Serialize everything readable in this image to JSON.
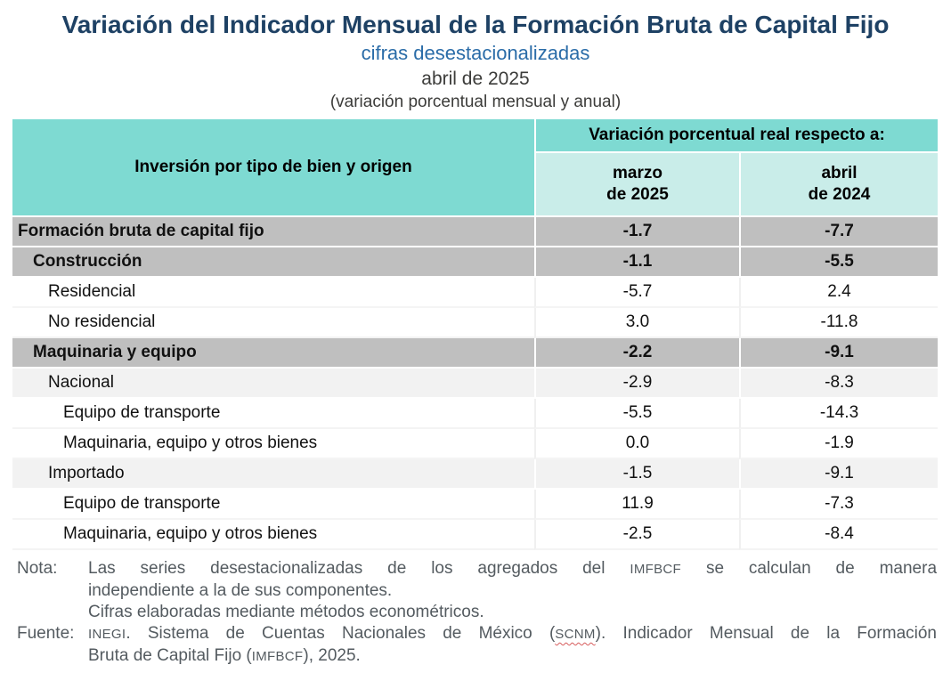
{
  "header": {
    "title": "Variación del Indicador Mensual de la Formación Bruta de Capital Fijo",
    "subtitle": "cifras desestacionalizadas",
    "period": "abril de 2025",
    "measure": "(variación porcentual mensual y anual)"
  },
  "table": {
    "stub_header": "Inversión por tipo de bien y origen",
    "values_header": "Variación porcentual real respecto a:",
    "col_marzo": "marzo\nde 2025",
    "col_abril": "abril\nde 2024",
    "rows": [
      {
        "label": "Formación bruta de capital fijo",
        "indent": 0,
        "style": "section",
        "marzo": "-1.7",
        "abril": "-7.7"
      },
      {
        "label": "Construcción",
        "indent": 1,
        "style": "section",
        "marzo": "-1.1",
        "abril": "-5.5"
      },
      {
        "label": "Residencial",
        "indent": 2,
        "style": "plain",
        "marzo": "-5.7",
        "abril": "2.4"
      },
      {
        "label": "No residencial",
        "indent": 2,
        "style": "plain",
        "marzo": "3.0",
        "abril": "-11.8"
      },
      {
        "label": "Maquinaria y equipo",
        "indent": 1,
        "style": "section",
        "marzo": "-2.2",
        "abril": "-9.1"
      },
      {
        "label": "Nacional",
        "indent": 2,
        "style": "light",
        "marzo": "-2.9",
        "abril": "-8.3"
      },
      {
        "label": "Equipo de transporte",
        "indent": 3,
        "style": "plain",
        "marzo": "-5.5",
        "abril": "-14.3"
      },
      {
        "label": "Maquinaria, equipo y otros bienes",
        "indent": 3,
        "style": "plain",
        "marzo": "0.0",
        "abril": "-1.9"
      },
      {
        "label": "Importado",
        "indent": 2,
        "style": "light",
        "marzo": "-1.5",
        "abril": "-9.1"
      },
      {
        "label": "Equipo de transporte",
        "indent": 3,
        "style": "plain",
        "marzo": "11.9",
        "abril": "-7.3"
      },
      {
        "label": "Maquinaria, equipo y otros bienes",
        "indent": 3,
        "style": "plain",
        "marzo": "-2.5",
        "abril": "-8.4"
      }
    ]
  },
  "notes": {
    "nota_label": "Nota:",
    "nota_line1_pre": "Las series desestacionalizadas de los agregados del ",
    "nota_line1_acr": "IMFBCF",
    "nota_line1_post": " se calculan de manera",
    "nota_line2": "independiente a la de sus componentes.",
    "nota_line3": "Cifras elaboradas mediante métodos econométricos.",
    "fuente_label": "Fuente:",
    "fuente_acr1": "INEGI",
    "fuente_seg1": ". Sistema de Cuentas Nacionales de México (",
    "fuente_acr2": "SCNM",
    "fuente_seg2": "). Indicador Mensual de la Formación",
    "fuente_line2_pre": "Bruta de Capital Fijo (",
    "fuente_line2_acr": "IMFBCF",
    "fuente_line2_post": "), 2025."
  },
  "colors": {
    "title_navy": "#1E4164",
    "subtitle_blue": "#2A6CA8",
    "header_teal": "#7EDAD2",
    "header_teal_light": "#C9EDE9",
    "section_row_gray": "#BFBFBF",
    "zebra_row_light_gray": "#F2F2F2",
    "note_text_gray": "#545B60",
    "spellcheck_red": "#D75C5C"
  }
}
